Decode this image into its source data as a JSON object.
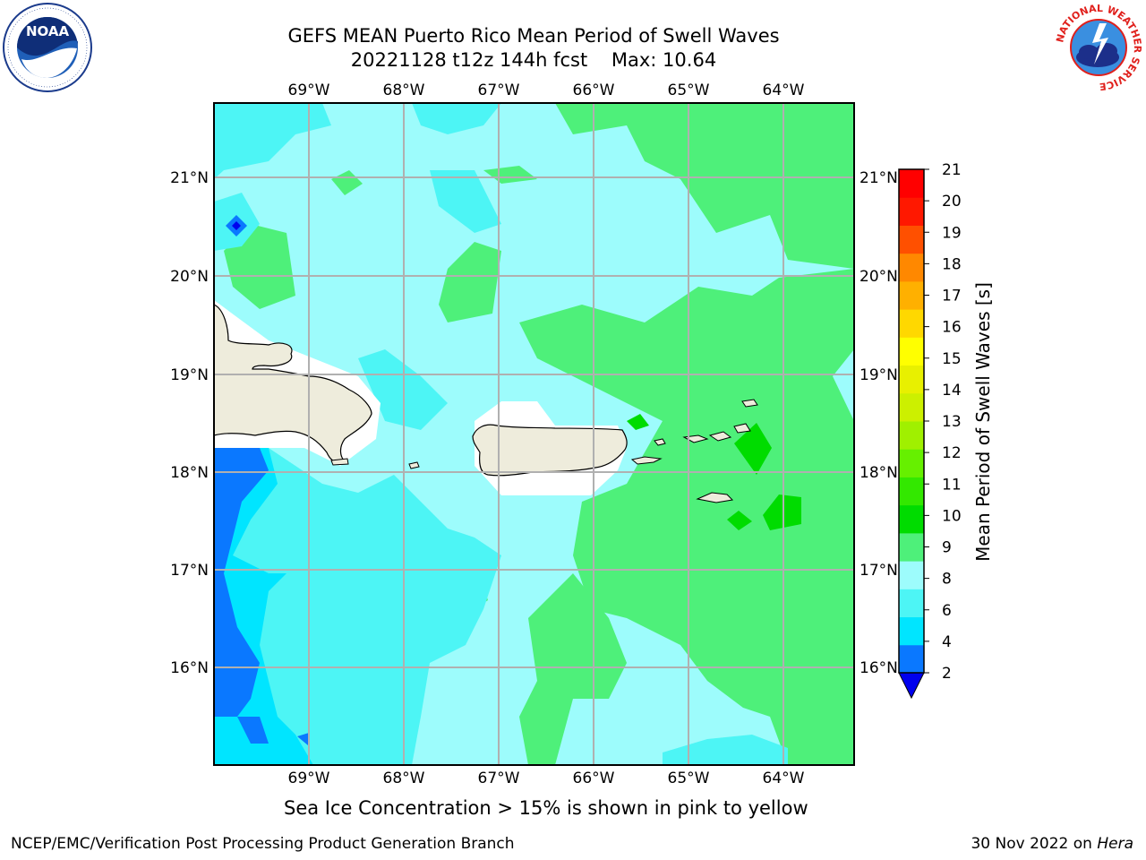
{
  "header": {
    "title_line1": "GEFS MEAN Puerto Rico Mean Period of Swell Waves",
    "title_line2": "20221128 t12z 144h fcst    Max: 10.64"
  },
  "logos": {
    "left": "NOAA",
    "right_ring_text": "NATIONAL WEATHER SERVICE"
  },
  "map": {
    "lon_labels": [
      "69°W",
      "68°W",
      "67°W",
      "66°W",
      "65°W",
      "64°W"
    ],
    "lat_labels": [
      "21°N",
      "20°N",
      "19°N",
      "18°N",
      "17°N",
      "16°N"
    ],
    "land_color": "#eeecdc",
    "grid_color": "#b0b0b0"
  },
  "colorbar": {
    "title": "Mean Period of Swell Waves [s]",
    "ticks": [
      "2",
      "4",
      "6",
      "8",
      "9",
      "10",
      "11",
      "12",
      "13",
      "14",
      "15",
      "16",
      "17",
      "18",
      "19",
      "20",
      "21"
    ],
    "colors": [
      "#0a78ff",
      "#00e5ff",
      "#4df5f5",
      "#9dfcfc",
      "#4ef07a",
      "#00dc00",
      "#33e800",
      "#66f000",
      "#a0f000",
      "#ccf000",
      "#e8f000",
      "#ffff00",
      "#ffd800",
      "#ffb000",
      "#ff8800",
      "#ff5000",
      "#ff1800",
      "#ff0000"
    ],
    "under_color": "#0000ee"
  },
  "footer": {
    "note": "Sea Ice Concentration > 15% is shown in pink to yellow",
    "credit": "NCEP/EMC/Verification Post Processing Product Generation Branch",
    "date": "30 Nov 2022 on",
    "machine": "Hera"
  }
}
